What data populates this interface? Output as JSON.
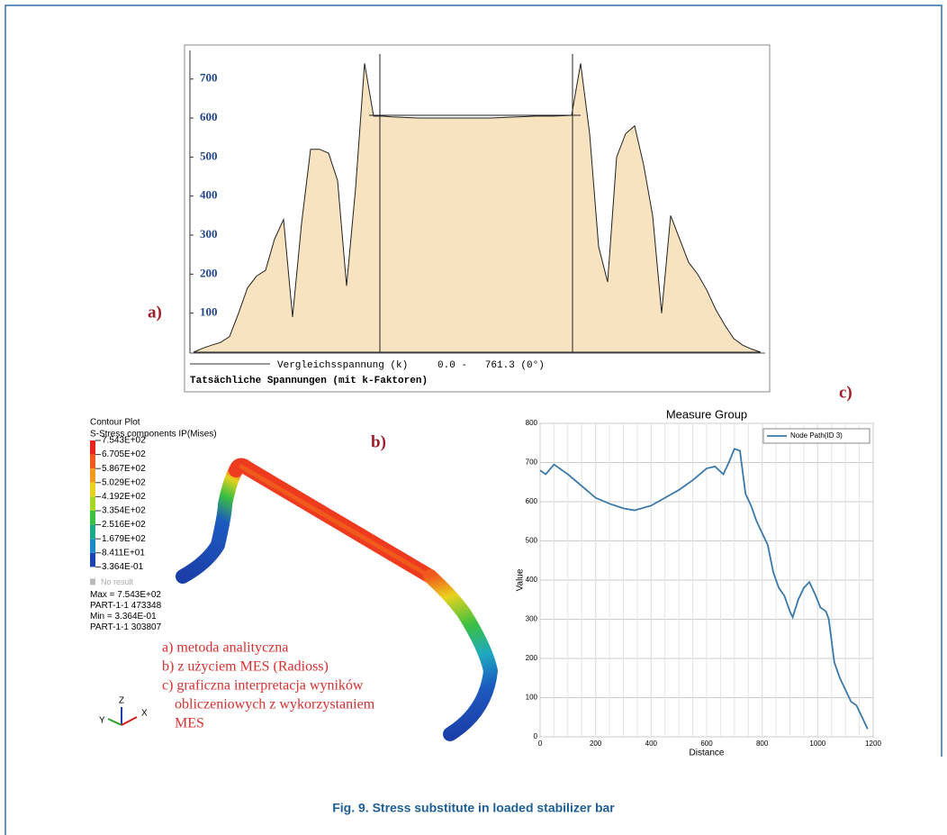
{
  "figure": {
    "caption": "Fig. 9. Stress substitute in loaded stabilizer bar",
    "panel_labels": [
      "a)",
      "b)",
      "c)"
    ],
    "legend_lines": [
      "a) metoda analityczna",
      "b) z użyciem MES (Radioss)",
      "c) graficzna interpretacja wyników",
      "obliczeniowych z wykorzystaniem",
      "MES"
    ],
    "axis_triad": [
      "Z",
      "Y",
      "X"
    ]
  },
  "chart_data": [
    {
      "type": "area",
      "x_label": "Vergleichsspannung (k)",
      "range_label": "0.0 -   761.3 (0°)",
      "footer": "Tatsächliche Spannungen (mit k-Faktoren)",
      "values": [
        0,
        10,
        18,
        25,
        40,
        100,
        165,
        195,
        210,
        290,
        340,
        90,
        330,
        520,
        520,
        510,
        440,
        170,
        420,
        740,
        605,
        605,
        603,
        602,
        601,
        600,
        600,
        600,
        600,
        600,
        600,
        600,
        600,
        600,
        601,
        602,
        603,
        604,
        605,
        605,
        605,
        606,
        607,
        740,
        560,
        270,
        180,
        500,
        560,
        580,
        480,
        350,
        100,
        350,
        290,
        230,
        200,
        160,
        110,
        70,
        35,
        18,
        8,
        0
      ],
      "color": "#f7e3c0",
      "ylim": [
        0,
        764
      ],
      "yticks": [
        100,
        200,
        300,
        400,
        500,
        600,
        700
      ]
    },
    {
      "type": "line",
      "title": "Measure Group",
      "x_label": "Distance",
      "y_label": "Value",
      "x": [
        0,
        20,
        50,
        100,
        150,
        200,
        250,
        300,
        340,
        400,
        450,
        500,
        550,
        600,
        630,
        660,
        680,
        700,
        720,
        740,
        760,
        780,
        800,
        820,
        840,
        860,
        880,
        900,
        910,
        930,
        950,
        970,
        990,
        1010,
        1030,
        1040,
        1060,
        1080,
        1100,
        1120,
        1140,
        1160,
        1180
      ],
      "series": [
        {
          "name": "Node Path(ID 3)",
          "color": "#3a78a8",
          "values": [
            680,
            670,
            695,
            670,
            640,
            610,
            595,
            583,
            578,
            590,
            610,
            630,
            655,
            685,
            690,
            670,
            700,
            735,
            730,
            620,
            590,
            550,
            520,
            490,
            420,
            380,
            360,
            320,
            305,
            350,
            380,
            395,
            365,
            330,
            320,
            300,
            190,
            150,
            120,
            90,
            80,
            50,
            20
          ]
        }
      ],
      "xlim": [
        0,
        1200
      ],
      "xticks": [
        0,
        200,
        400,
        600,
        800,
        1000,
        1200
      ],
      "ylim": [
        0,
        800
      ],
      "yticks": [
        0,
        100,
        200,
        300,
        400,
        500,
        600,
        700,
        800
      ],
      "grid": true,
      "legend": "upper right"
    }
  ],
  "contour": {
    "title": "Contour Plot",
    "subtitle": "S-Stress components IP(Mises)",
    "ticks": [
      {
        "value": 754.3,
        "label": "7.543E+02"
      },
      {
        "value": 670.5,
        "label": "6.705E+02"
      },
      {
        "value": 586.7,
        "label": "5.867E+02"
      },
      {
        "value": 502.9,
        "label": "5.029E+02"
      },
      {
        "value": 419.2,
        "label": "4.192E+02"
      },
      {
        "value": 335.4,
        "label": "3.354E+02"
      },
      {
        "value": 251.6,
        "label": "2.516E+02"
      },
      {
        "value": 167.9,
        "label": "1.679E+02"
      },
      {
        "value": 84.11,
        "label": "8.411E+01"
      },
      {
        "value": 0.3364,
        "label": "3.364E-01"
      }
    ],
    "colors": [
      "#e8221c",
      "#f05a1c",
      "#f5981e",
      "#e8d21e",
      "#a8d62a",
      "#3cc040",
      "#1ea88a",
      "#1c8ac8",
      "#1c44b0"
    ],
    "no_result": "No result",
    "notes": [
      "Max = 7.543E+02",
      "PART-1-1 473348",
      "Min = 3.364E-01",
      "PART-1-1 303807"
    ]
  }
}
